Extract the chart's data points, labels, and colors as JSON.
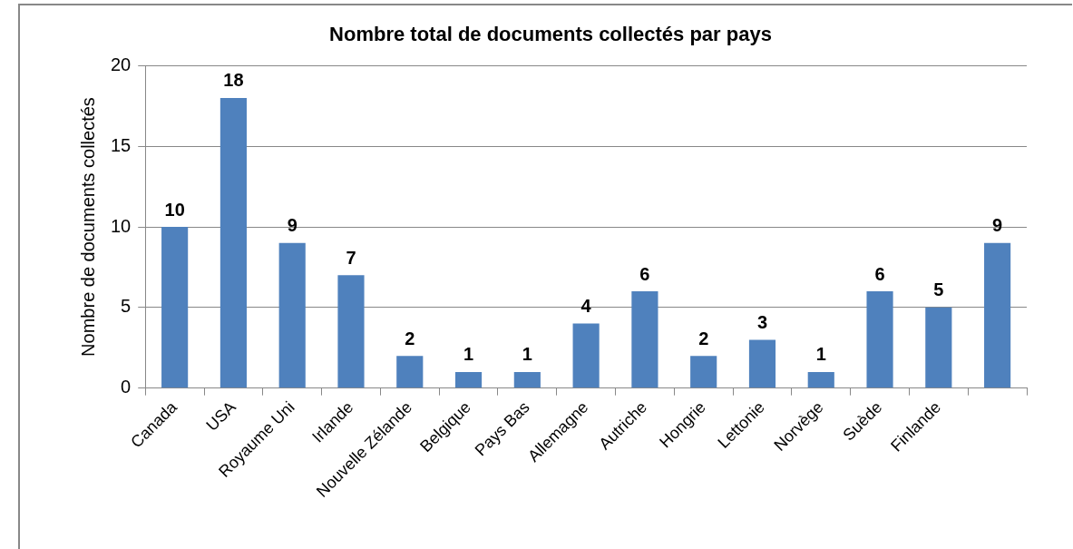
{
  "chart_data": {
    "type": "bar",
    "title": "Nombre total de documents collectés par pays",
    "ylabel": "Nombre de documents collectés",
    "categories": [
      "Canada",
      "USA",
      "Royaume Uni",
      "Irlande",
      "Nouvelle Zélande",
      "Belgique",
      "Pays Bas",
      "Allemagne",
      "Autriche",
      "Hongrie",
      "Lettonie",
      "Norvège",
      "Suède",
      "Finlande",
      null
    ],
    "values": [
      10,
      18,
      9,
      7,
      2,
      1,
      1,
      4,
      6,
      2,
      3,
      1,
      6,
      5,
      9
    ],
    "color": "#4f81bd",
    "ylim": [
      0,
      20
    ],
    "yticks": [
      0,
      5,
      10,
      15,
      20
    ],
    "grid": "y",
    "legend": false,
    "data_labels": true
  }
}
